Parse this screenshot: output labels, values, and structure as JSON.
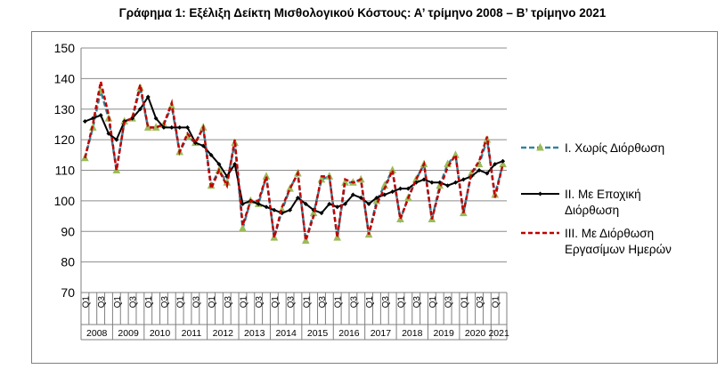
{
  "title": "Γράφημα 1: Εξέλιξη Δείκτη Μισθολογικού Κόστους:  Α’ τρίμηνο 2008 – Β’ τρίμηνο 2021",
  "chart_data": {
    "type": "line",
    "title": "Γράφημα 1: Εξέλιξη Δείκτη Μισθολογικού Κόστους:  Α’ τρίμηνο 2008 – Β’ τρίμηνο 2021",
    "ylim": [
      70,
      150
    ],
    "yticks": [
      70,
      80,
      90,
      100,
      110,
      120,
      130,
      140,
      150
    ],
    "grid": true,
    "legend_position": "right",
    "quarter_tick_labels": [
      "Q1",
      "Q3"
    ],
    "years": [
      "2008",
      "2009",
      "2010",
      "2011",
      "2012",
      "2013",
      "2014",
      "2015",
      "2016",
      "2017",
      "2018",
      "2019",
      "2020",
      "2021"
    ],
    "x": [
      "2008Q1",
      "2008Q2",
      "2008Q3",
      "2008Q4",
      "2009Q1",
      "2009Q2",
      "2009Q3",
      "2009Q4",
      "2010Q1",
      "2010Q2",
      "2010Q3",
      "2010Q4",
      "2011Q1",
      "2011Q2",
      "2011Q3",
      "2011Q4",
      "2012Q1",
      "2012Q2",
      "2012Q3",
      "2012Q4",
      "2013Q1",
      "2013Q2",
      "2013Q3",
      "2013Q4",
      "2014Q1",
      "2014Q2",
      "2014Q3",
      "2014Q4",
      "2015Q1",
      "2015Q2",
      "2015Q3",
      "2015Q4",
      "2016Q1",
      "2016Q2",
      "2016Q3",
      "2016Q4",
      "2017Q1",
      "2017Q2",
      "2017Q3",
      "2017Q4",
      "2018Q1",
      "2018Q2",
      "2018Q3",
      "2018Q4",
      "2019Q1",
      "2019Q2",
      "2019Q3",
      "2019Q4",
      "2020Q1",
      "2020Q2",
      "2020Q3",
      "2020Q4",
      "2021Q1",
      "2021Q2"
    ],
    "series": [
      {
        "name": "Ι. Χωρίς Διόρθωση",
        "color": "#31849b",
        "style": "dashed-triangle",
        "values": [
          114,
          124,
          136,
          127,
          110,
          126,
          127,
          137,
          124,
          124,
          125,
          131,
          116,
          121,
          119,
          124,
          105,
          110,
          106,
          119,
          91,
          100,
          99,
          108,
          88,
          97,
          104,
          109,
          87,
          96,
          107,
          108,
          88,
          106,
          106,
          107,
          89,
          100,
          105,
          110,
          94,
          101,
          107,
          112,
          94,
          105,
          112,
          115,
          96,
          109,
          112,
          120,
          102,
          112
        ]
      },
      {
        "name": "ΙΙ. Με Εποχική Διόρθωση",
        "color": "#000000",
        "style": "solid-diamond",
        "values": [
          126,
          127,
          128,
          122,
          120,
          126,
          127,
          130,
          134,
          127,
          124,
          124,
          124,
          124,
          119,
          118,
          115,
          112,
          108,
          112,
          99,
          100,
          99,
          98,
          97,
          96,
          97,
          101,
          99,
          97,
          96,
          99,
          98,
          99,
          102,
          101,
          99,
          101,
          102,
          103,
          104,
          104,
          106,
          107,
          106,
          106,
          105,
          106,
          107,
          108,
          110,
          109,
          112,
          113
        ]
      },
      {
        "name": "ΙΙΙ. Με Διόρθωση Εργασίμων Ημερών",
        "color": "#c00000",
        "style": "dashed",
        "values": [
          114,
          125,
          139,
          128,
          110,
          126,
          127,
          138,
          124,
          124,
          125,
          132,
          116,
          122,
          119,
          124,
          104,
          110,
          105,
          120,
          92,
          100,
          100,
          108,
          88,
          98,
          104,
          109,
          87,
          95,
          108,
          108,
          88,
          107,
          106,
          107,
          89,
          99,
          104,
          110,
          94,
          101,
          107,
          112,
          94,
          104,
          111,
          115,
          96,
          109,
          113,
          121,
          101,
          112
        ]
      }
    ],
    "legend": [
      {
        "label_lines": [
          "Ι. Χωρίς Διόρθωση"
        ]
      },
      {
        "label_lines": [
          "ΙΙ. Με Εποχική",
          "Διόρθωση"
        ]
      },
      {
        "label_lines": [
          "ΙΙΙ. Με Διόρθωση",
          "Εργασίμων Ημερών"
        ]
      }
    ]
  }
}
